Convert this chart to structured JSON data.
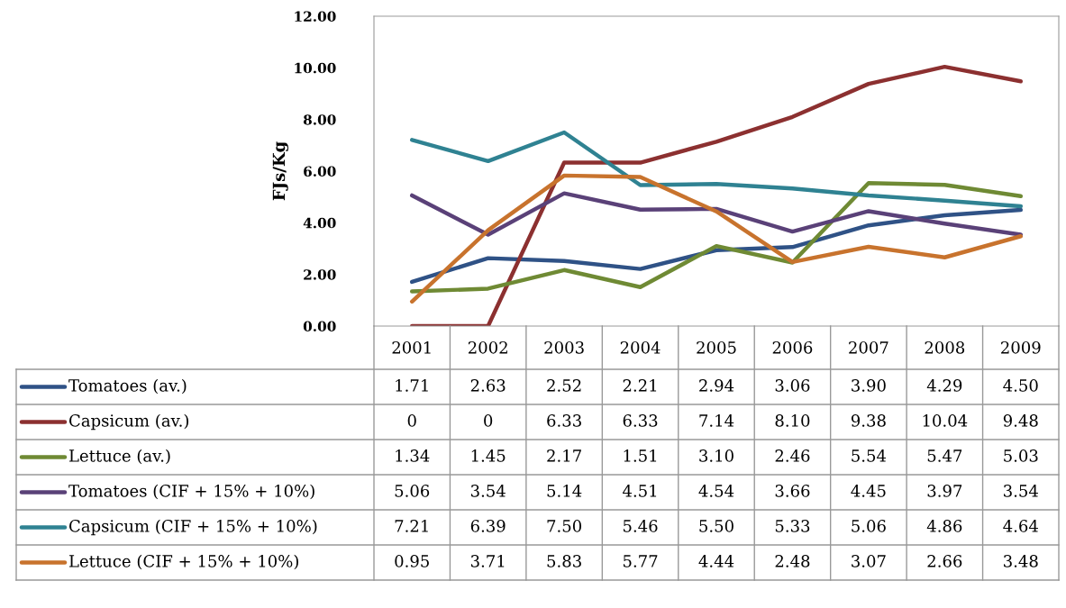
{
  "chart_data": {
    "type": "line",
    "ylabel": "FJs/Kg",
    "categories": [
      "2001",
      "2002",
      "2003",
      "2004",
      "2005",
      "2006",
      "2007",
      "2008",
      "2009"
    ],
    "ylim": [
      0,
      12
    ],
    "yticks": [
      {
        "value": 0,
        "label": "0.00"
      },
      {
        "value": 2,
        "label": "2.00"
      },
      {
        "value": 4,
        "label": "4.00"
      },
      {
        "value": 6,
        "label": "6.00"
      },
      {
        "value": 8,
        "label": "8.00"
      },
      {
        "value": 10,
        "label": "10.00"
      },
      {
        "value": 12,
        "label": "12.00"
      }
    ],
    "grid": false,
    "legend": "bottom",
    "marker": "none",
    "line_style": "solid",
    "series": [
      {
        "name": "Tomatoes (av.)",
        "color": "#2f5286",
        "values": [
          1.71,
          2.63,
          2.52,
          2.21,
          2.94,
          3.06,
          3.9,
          4.29,
          4.5
        ],
        "value_labels": [
          "1.71",
          "2.63",
          "2.52",
          "2.21",
          "2.94",
          "3.06",
          "3.90",
          "4.29",
          "4.50"
        ]
      },
      {
        "name": "Capsicum (av.)",
        "color": "#8c3030",
        "values": [
          0,
          0,
          6.33,
          6.33,
          7.14,
          8.1,
          9.38,
          10.04,
          9.48
        ],
        "value_labels": [
          "0",
          "0",
          "6.33",
          "6.33",
          "7.14",
          "8.10",
          "9.38",
          "10.04",
          "9.48"
        ]
      },
      {
        "name": "Lettuce (av.)",
        "color": "#6f8a34",
        "values": [
          1.34,
          1.45,
          2.17,
          1.51,
          3.1,
          2.46,
          5.54,
          5.47,
          5.03
        ],
        "value_labels": [
          "1.34",
          "1.45",
          "2.17",
          "1.51",
          "3.10",
          "2.46",
          "5.54",
          "5.47",
          "5.03"
        ]
      },
      {
        "name": "Tomatoes (CIF + 15% + 10%)",
        "color": "#5a4178",
        "values": [
          5.06,
          3.54,
          5.14,
          4.51,
          4.54,
          3.66,
          4.45,
          3.97,
          3.54
        ],
        "value_labels": [
          "5.06",
          "3.54",
          "5.14",
          "4.51",
          "4.54",
          "3.66",
          "4.45",
          "3.97",
          "3.54"
        ]
      },
      {
        "name": "Capsicum (CIF + 15% + 10%)",
        "color": "#2f8292",
        "values": [
          7.21,
          6.39,
          7.5,
          5.46,
          5.5,
          5.33,
          5.06,
          4.86,
          4.64
        ],
        "value_labels": [
          "7.21",
          "6.39",
          "7.50",
          "5.46",
          "5.50",
          "5.33",
          "5.06",
          "4.86",
          "4.64"
        ]
      },
      {
        "name": "Lettuce (CIF + 15% + 10%)",
        "color": "#c8732d",
        "values": [
          0.95,
          3.71,
          5.83,
          5.77,
          4.44,
          2.48,
          3.07,
          2.66,
          3.48
        ],
        "value_labels": [
          "0.95",
          "3.71",
          "5.83",
          "5.77",
          "4.44",
          "2.48",
          "3.07",
          "2.66",
          "3.48"
        ]
      }
    ]
  }
}
